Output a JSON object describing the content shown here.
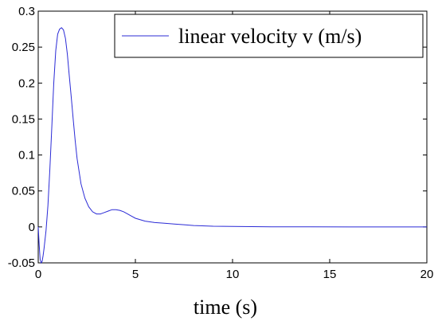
{
  "chart_data": {
    "type": "line",
    "title": "",
    "xlabel": "time (s)",
    "ylabel": "",
    "xlim": [
      0,
      20
    ],
    "ylim": [
      -0.05,
      0.3
    ],
    "xticks": [
      0,
      5,
      10,
      15,
      20
    ],
    "yticks": [
      -0.05,
      0,
      0.05,
      0.1,
      0.15,
      0.2,
      0.25,
      0.3
    ],
    "xtick_labels": [
      "0",
      "5",
      "10",
      "15",
      "20"
    ],
    "ytick_labels": [
      "-0.05",
      "0",
      "0.05",
      "0.1",
      "0.15",
      "0.2",
      "0.25",
      "0.3"
    ],
    "grid": false,
    "legend_position": "top-right",
    "series": [
      {
        "name": "linear velocity v (m/s)",
        "color": "#2b2bd6",
        "x": [
          0,
          0.05,
          0.1,
          0.15,
          0.2,
          0.25,
          0.3,
          0.4,
          0.5,
          0.6,
          0.7,
          0.8,
          0.9,
          1.0,
          1.1,
          1.2,
          1.3,
          1.4,
          1.5,
          1.6,
          1.7,
          1.8,
          1.9,
          2.0,
          2.2,
          2.4,
          2.6,
          2.8,
          3.0,
          3.2,
          3.4,
          3.6,
          3.8,
          4.0,
          4.2,
          4.4,
          4.6,
          4.8,
          5.0,
          5.5,
          6.0,
          6.5,
          7.0,
          7.5,
          8.0,
          9.0,
          10.0,
          11.0,
          12.0,
          14.0,
          16.0,
          18.0,
          20.0
        ],
        "y": [
          0.0,
          -0.025,
          -0.045,
          -0.05,
          -0.048,
          -0.04,
          -0.03,
          -0.005,
          0.03,
          0.08,
          0.14,
          0.2,
          0.245,
          0.268,
          0.275,
          0.277,
          0.274,
          0.262,
          0.24,
          0.21,
          0.18,
          0.15,
          0.12,
          0.095,
          0.06,
          0.04,
          0.028,
          0.021,
          0.018,
          0.018,
          0.02,
          0.022,
          0.024,
          0.024,
          0.023,
          0.021,
          0.018,
          0.015,
          0.012,
          0.008,
          0.006,
          0.005,
          0.004,
          0.003,
          0.002,
          0.001,
          0.0007,
          0.0004,
          0.0002,
          0.0001,
          0.0,
          0.0,
          0.0
        ]
      }
    ]
  }
}
